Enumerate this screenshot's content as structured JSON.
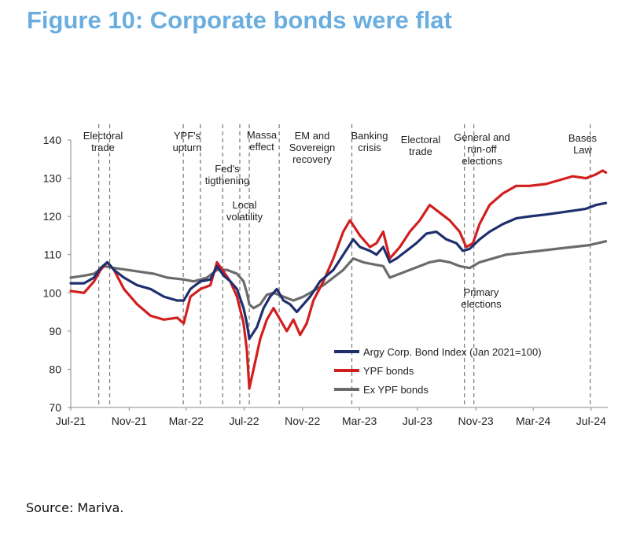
{
  "figure_title": "Figure 10: Corporate bonds were flat",
  "source": "Source: Mariva.",
  "chart_data": {
    "type": "line",
    "title": "",
    "xlabel": "",
    "ylabel": "",
    "x_range": [
      "2021-07-01",
      "2024-08-05"
    ],
    "ylim": [
      70,
      140
    ],
    "y_ticks": [
      70,
      80,
      90,
      100,
      110,
      120,
      130,
      140
    ],
    "x_ticks": [
      {
        "date": "2021-07-01",
        "label": "Jul-21"
      },
      {
        "date": "2021-11-01",
        "label": "Nov-21"
      },
      {
        "date": "2022-03-01",
        "label": "Mar-22"
      },
      {
        "date": "2022-07-01",
        "label": "Jul-22"
      },
      {
        "date": "2022-11-01",
        "label": "Nov-22"
      },
      {
        "date": "2023-03-01",
        "label": "Mar-23"
      },
      {
        "date": "2023-07-01",
        "label": "Jul-23"
      },
      {
        "date": "2023-11-01",
        "label": "Nov-23"
      },
      {
        "date": "2024-03-01",
        "label": "Mar-24"
      },
      {
        "date": "2024-07-01",
        "label": "Jul-24"
      }
    ],
    "grid": false,
    "legend_position": "bottom-right",
    "event_lines": [
      {
        "date": "2021-08-29",
        "labels": [
          "Electoral",
          "trade"
        ]
      },
      {
        "date": "2021-09-21"
      },
      {
        "date": "2022-02-23",
        "labels": [
          "YPF's",
          "upturn"
        ]
      },
      {
        "date": "2022-03-31"
      },
      {
        "date": "2022-05-17",
        "labels": [
          "Fed's",
          "tigthening"
        ]
      },
      {
        "date": "2022-06-22",
        "labels": [
          "Local",
          "volatility"
        ]
      },
      {
        "date": "2022-07-12",
        "labels": [
          "Massa",
          "effect"
        ]
      },
      {
        "date": "2022-09-13",
        "labels": [
          "EM and",
          "Sovereign",
          "recovery"
        ]
      },
      {
        "date": "2023-02-13",
        "labels": [
          "Banking",
          "crisis"
        ]
      },
      {
        "date": "2023-10-08",
        "labels": [
          "Primary",
          "elections"
        ]
      },
      {
        "date": "2023-10-28",
        "labels": [
          "General and",
          "run-off",
          "elections"
        ]
      },
      {
        "date": "2024-06-29",
        "labels": [
          "Bases",
          "Law"
        ]
      }
    ],
    "extra_labels": [
      {
        "labels": [
          "Electoral",
          "trade"
        ]
      }
    ],
    "series": [
      {
        "name": "Argy Corp. Bond Index (Jan 2021=100)",
        "color": "#1f2f6e",
        "points": [
          [
            "2021-07-01",
            102.5
          ],
          [
            "2021-07-29",
            102.5
          ],
          [
            "2021-08-19",
            104
          ],
          [
            "2021-09-02",
            106.5
          ],
          [
            "2021-09-16",
            108
          ],
          [
            "2021-09-30",
            106
          ],
          [
            "2021-10-21",
            104
          ],
          [
            "2021-11-18",
            102
          ],
          [
            "2021-12-16",
            101
          ],
          [
            "2022-01-13",
            99
          ],
          [
            "2022-02-10",
            98
          ],
          [
            "2022-02-24",
            98
          ],
          [
            "2022-03-10",
            101
          ],
          [
            "2022-03-31",
            103
          ],
          [
            "2022-04-21",
            103.5
          ],
          [
            "2022-05-05",
            107
          ],
          [
            "2022-05-19",
            104.5
          ],
          [
            "2022-06-02",
            103
          ],
          [
            "2022-06-16",
            101
          ],
          [
            "2022-06-30",
            96
          ],
          [
            "2022-07-07",
            92
          ],
          [
            "2022-07-12",
            88
          ],
          [
            "2022-07-28",
            91
          ],
          [
            "2022-08-11",
            96
          ],
          [
            "2022-08-25",
            99
          ],
          [
            "2022-09-08",
            101
          ],
          [
            "2022-09-22",
            98
          ],
          [
            "2022-10-06",
            97
          ],
          [
            "2022-10-20",
            95
          ],
          [
            "2022-11-03",
            97
          ],
          [
            "2022-11-17",
            99
          ],
          [
            "2022-12-08",
            103
          ],
          [
            "2023-01-05",
            106
          ],
          [
            "2023-01-26",
            110
          ],
          [
            "2023-02-16",
            114
          ],
          [
            "2023-03-02",
            112
          ],
          [
            "2023-03-23",
            111
          ],
          [
            "2023-04-06",
            110
          ],
          [
            "2023-04-20",
            112
          ],
          [
            "2023-05-04",
            108
          ],
          [
            "2023-05-18",
            109
          ],
          [
            "2023-06-08",
            111
          ],
          [
            "2023-06-29",
            113
          ],
          [
            "2023-07-20",
            115.5
          ],
          [
            "2023-08-10",
            116
          ],
          [
            "2023-08-31",
            114
          ],
          [
            "2023-09-21",
            113
          ],
          [
            "2023-10-05",
            111
          ],
          [
            "2023-10-19",
            111.5
          ],
          [
            "2023-11-09",
            114
          ],
          [
            "2023-11-30",
            116
          ],
          [
            "2023-12-28",
            118
          ],
          [
            "2024-01-25",
            119.5
          ],
          [
            "2024-02-22",
            120
          ],
          [
            "2024-03-28",
            120.5
          ],
          [
            "2024-04-25",
            121
          ],
          [
            "2024-05-23",
            121.5
          ],
          [
            "2024-06-20",
            122
          ],
          [
            "2024-07-11",
            123
          ],
          [
            "2024-08-01",
            123.5
          ]
        ]
      },
      {
        "name": "YPF bonds",
        "color": "#d11f1f",
        "points": [
          [
            "2021-07-01",
            100.5
          ],
          [
            "2021-07-29",
            100
          ],
          [
            "2021-08-19",
            103
          ],
          [
            "2021-09-02",
            106
          ],
          [
            "2021-09-16",
            108
          ],
          [
            "2021-09-30",
            106
          ],
          [
            "2021-10-21",
            101
          ],
          [
            "2021-11-18",
            97
          ],
          [
            "2021-12-16",
            94
          ],
          [
            "2022-01-13",
            93
          ],
          [
            "2022-02-10",
            93.5
          ],
          [
            "2022-02-24",
            92
          ],
          [
            "2022-03-10",
            99
          ],
          [
            "2022-03-31",
            101
          ],
          [
            "2022-04-21",
            102
          ],
          [
            "2022-05-05",
            108
          ],
          [
            "2022-05-19",
            105.5
          ],
          [
            "2022-06-02",
            103
          ],
          [
            "2022-06-16",
            99
          ],
          [
            "2022-06-30",
            92
          ],
          [
            "2022-07-07",
            85
          ],
          [
            "2022-07-12",
            75
          ],
          [
            "2022-07-21",
            80
          ],
          [
            "2022-08-04",
            88
          ],
          [
            "2022-08-18",
            93
          ],
          [
            "2022-09-01",
            96
          ],
          [
            "2022-09-15",
            93
          ],
          [
            "2022-09-29",
            90
          ],
          [
            "2022-10-13",
            93
          ],
          [
            "2022-10-27",
            89
          ],
          [
            "2022-11-10",
            92
          ],
          [
            "2022-11-24",
            98
          ],
          [
            "2022-12-15",
            103
          ],
          [
            "2023-01-05",
            109
          ],
          [
            "2023-01-26",
            116
          ],
          [
            "2023-02-09",
            119
          ],
          [
            "2023-03-02",
            115
          ],
          [
            "2023-03-23",
            112
          ],
          [
            "2023-04-06",
            113
          ],
          [
            "2023-04-20",
            116
          ],
          [
            "2023-05-04",
            109
          ],
          [
            "2023-05-25",
            112
          ],
          [
            "2023-06-15",
            116
          ],
          [
            "2023-07-06",
            119
          ],
          [
            "2023-07-27",
            123
          ],
          [
            "2023-08-17",
            121
          ],
          [
            "2023-09-07",
            119
          ],
          [
            "2023-09-28",
            116
          ],
          [
            "2023-10-12",
            112
          ],
          [
            "2023-10-26",
            113
          ],
          [
            "2023-11-09",
            118
          ],
          [
            "2023-11-30",
            123
          ],
          [
            "2023-12-28",
            126
          ],
          [
            "2024-01-25",
            128
          ],
          [
            "2024-02-22",
            128
          ],
          [
            "2024-03-28",
            128.5
          ],
          [
            "2024-04-25",
            129.5
          ],
          [
            "2024-05-23",
            130.5
          ],
          [
            "2024-06-20",
            130
          ],
          [
            "2024-07-11",
            131
          ],
          [
            "2024-07-25",
            132
          ],
          [
            "2024-08-01",
            131.5
          ]
        ]
      },
      {
        "name": "Ex YPF bonds",
        "color": "#6b6b6b",
        "points": [
          [
            "2021-07-01",
            104
          ],
          [
            "2021-07-29",
            104.5
          ],
          [
            "2021-08-19",
            105
          ],
          [
            "2021-09-09",
            107
          ],
          [
            "2021-09-30",
            106.5
          ],
          [
            "2021-10-28",
            106
          ],
          [
            "2021-11-25",
            105.5
          ],
          [
            "2021-12-23",
            105
          ],
          [
            "2022-01-20",
            104
          ],
          [
            "2022-02-24",
            103.5
          ],
          [
            "2022-03-17",
            103
          ],
          [
            "2022-04-14",
            104
          ],
          [
            "2022-05-05",
            106
          ],
          [
            "2022-05-26",
            106
          ],
          [
            "2022-06-16",
            105
          ],
          [
            "2022-06-30",
            103
          ],
          [
            "2022-07-07",
            100
          ],
          [
            "2022-07-12",
            97
          ],
          [
            "2022-07-21",
            96
          ],
          [
            "2022-08-04",
            97
          ],
          [
            "2022-08-18",
            99.5
          ],
          [
            "2022-09-01",
            100
          ],
          [
            "2022-09-22",
            99
          ],
          [
            "2022-10-13",
            98
          ],
          [
            "2022-11-03",
            99
          ],
          [
            "2022-11-24",
            100.5
          ],
          [
            "2022-12-15",
            102
          ],
          [
            "2023-01-05",
            104
          ],
          [
            "2023-01-26",
            106
          ],
          [
            "2023-02-16",
            109
          ],
          [
            "2023-03-09",
            108
          ],
          [
            "2023-03-30",
            107.5
          ],
          [
            "2023-04-20",
            107
          ],
          [
            "2023-05-04",
            104
          ],
          [
            "2023-05-25",
            105
          ],
          [
            "2023-06-15",
            106
          ],
          [
            "2023-07-06",
            107
          ],
          [
            "2023-07-27",
            108
          ],
          [
            "2023-08-17",
            108.5
          ],
          [
            "2023-09-07",
            108
          ],
          [
            "2023-09-28",
            107
          ],
          [
            "2023-10-19",
            106.5
          ],
          [
            "2023-11-09",
            108
          ],
          [
            "2023-12-07",
            109
          ],
          [
            "2024-01-04",
            110
          ],
          [
            "2024-02-08",
            110.5
          ],
          [
            "2024-03-14",
            111
          ],
          [
            "2024-04-18",
            111.5
          ],
          [
            "2024-05-23",
            112
          ],
          [
            "2024-06-27",
            112.5
          ],
          [
            "2024-08-01",
            113.5
          ]
        ]
      }
    ]
  }
}
